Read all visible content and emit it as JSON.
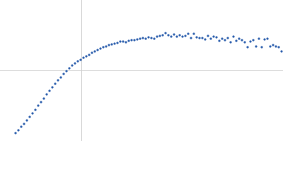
{
  "chart_data": {
    "type": "scatter",
    "color": "#3465b0",
    "xlim": [
      -115,
      285
    ],
    "ylim": [
      -100,
      100
    ],
    "x": [
      -93,
      -89,
      -85,
      -81,
      -77,
      -73,
      -69,
      -65,
      -61,
      -57,
      -53,
      -49,
      -45,
      -41,
      -37,
      -33,
      -29,
      -25,
      -21,
      -17,
      -13,
      -9,
      -5,
      -1,
      3,
      7,
      11,
      15,
      19,
      23,
      27,
      31,
      35,
      39,
      43,
      47,
      51,
      55,
      59,
      63,
      67,
      71,
      75,
      79,
      83,
      87,
      91,
      95,
      99,
      103,
      107,
      111,
      115,
      119,
      123,
      127,
      131,
      135,
      139,
      143,
      147,
      151,
      155,
      159,
      163,
      167,
      171,
      175,
      179,
      183,
      187,
      191,
      195,
      199,
      203,
      207,
      211,
      215,
      219,
      223,
      227,
      231,
      235,
      239,
      243,
      247,
      251,
      255,
      259,
      263,
      267,
      271,
      275,
      279,
      283
    ],
    "values": [
      -89,
      -85,
      -80,
      -76,
      -71,
      -66,
      -61,
      -56,
      -50,
      -45,
      -40,
      -34,
      -29,
      -24,
      -19,
      -14,
      -10,
      -5,
      -1,
      3,
      7,
      10,
      13,
      15,
      18,
      20,
      22,
      25,
      27,
      29,
      31,
      33,
      34,
      36,
      37,
      38,
      39,
      41,
      41,
      40,
      42,
      43,
      43,
      44,
      45,
      46,
      45,
      47,
      46,
      45,
      48,
      49,
      50,
      53,
      50,
      48,
      51,
      48,
      50,
      48,
      49,
      52,
      46,
      52,
      47,
      46,
      46,
      44,
      49,
      45,
      48,
      47,
      42,
      45,
      43,
      46,
      40,
      48,
      42,
      45,
      43,
      40,
      33,
      41,
      43,
      34,
      45,
      33,
      44,
      45,
      34,
      36,
      34,
      33,
      27
    ]
  }
}
